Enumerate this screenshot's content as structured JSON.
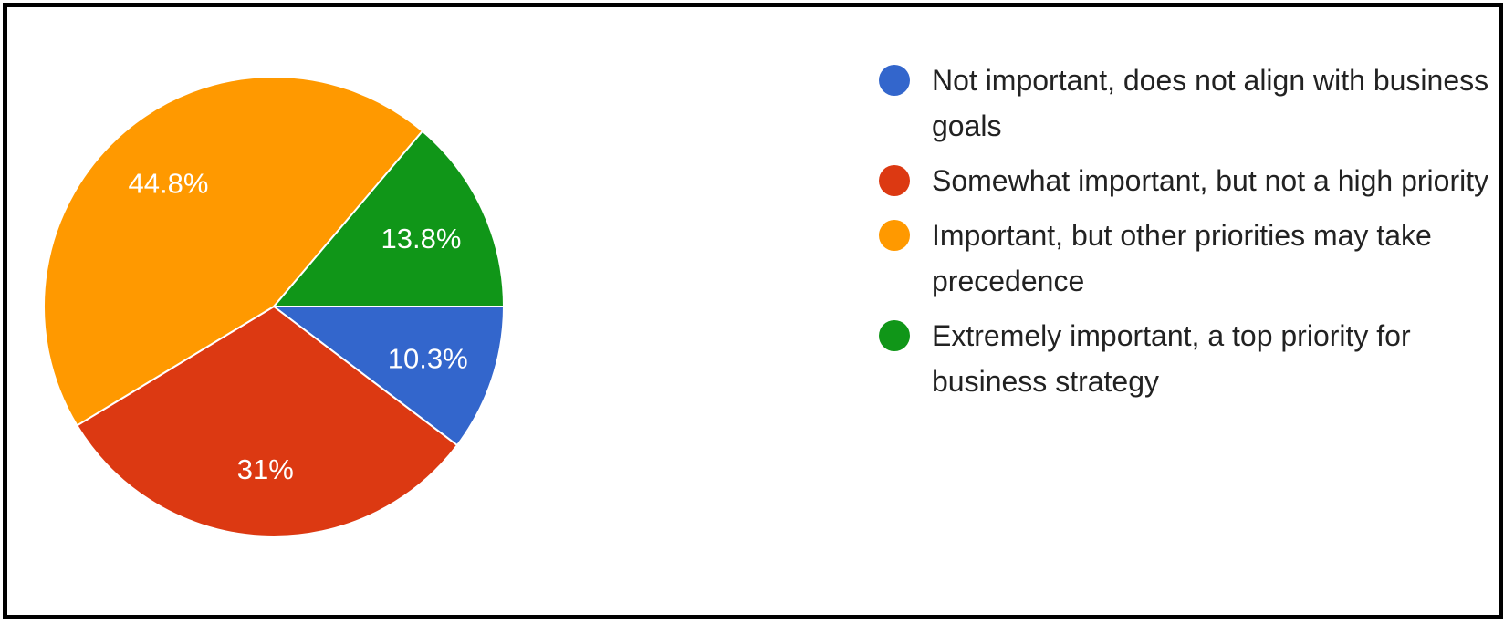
{
  "chart_data": {
    "type": "pie",
    "slices": [
      {
        "label": "Not important, does not align with business goals",
        "value": 10.3,
        "display": "10.3%",
        "color": "#3366cc"
      },
      {
        "label": "Somewhat important, but not a high priority",
        "value": 31,
        "display": "31%",
        "color": "#dc3912"
      },
      {
        "label": "Important, but other priorities may take precedence",
        "value": 44.8,
        "display": "44.8%",
        "color": "#ff9900"
      },
      {
        "label": "Extremely important, a top priority for business strategy",
        "value": 13.8,
        "display": "13.8%",
        "color": "#109618"
      }
    ],
    "legend_position": "right",
    "start_angle": "3 o'clock",
    "direction": "clockwise"
  }
}
